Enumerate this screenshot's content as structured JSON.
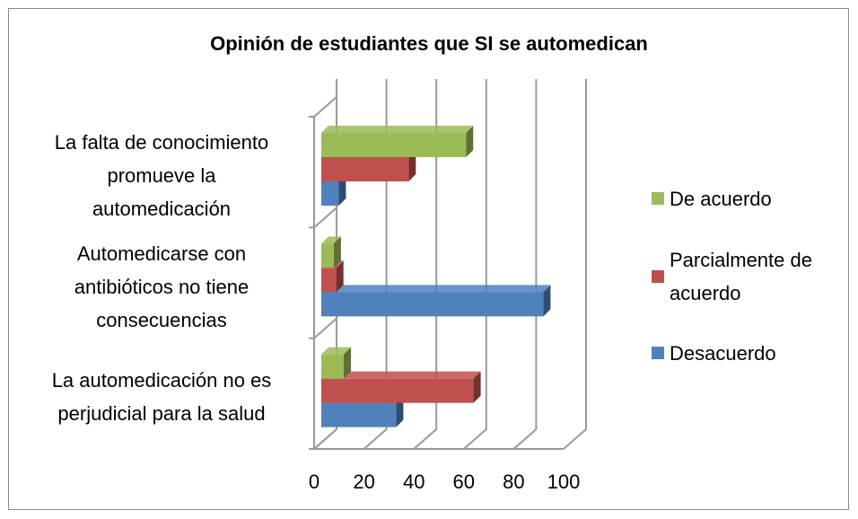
{
  "chart_data": {
    "type": "bar3d_horizontal",
    "title": "Opinión de estudiantes que SI se automedican",
    "categories": [
      "La automedicación no es perjudicial para la salud",
      "Automedicarse con antibióticos no tiene consecuencias",
      "La falta de conocimiento promueve la automedicación"
    ],
    "series": [
      {
        "name": "Desacuerdo",
        "color": "#4f81bd",
        "values": [
          30,
          89,
          7
        ]
      },
      {
        "name": "Parcialmente de acuerdo",
        "color": "#c0504d",
        "values": [
          61,
          6,
          35
        ]
      },
      {
        "name": "De acuerdo",
        "color": "#9bbb59",
        "values": [
          9,
          5,
          58
        ]
      }
    ],
    "xlim": [
      0,
      100
    ],
    "xticks": [
      0,
      20,
      40,
      60,
      80,
      100
    ],
    "grid": true,
    "legend": "right"
  }
}
